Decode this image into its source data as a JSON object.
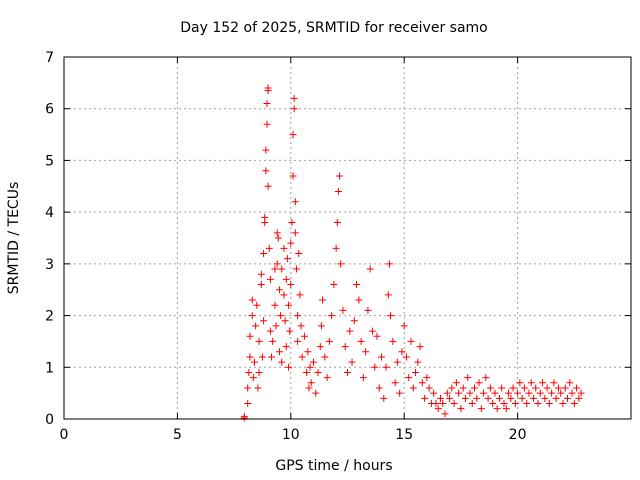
{
  "chart_data": {
    "type": "scatter",
    "title": "Day 152 of 2025, SRMTID for receiver samo",
    "xlabel": "GPS time / hours",
    "ylabel": "SRMTID / TECUs",
    "xlim": [
      0,
      25
    ],
    "ylim": [
      0,
      7
    ],
    "xticks": [
      0,
      5,
      10,
      15,
      20
    ],
    "yticks": [
      0,
      1,
      2,
      3,
      4,
      5,
      6,
      7
    ],
    "xtick_labels": [
      "0",
      "5",
      "10",
      "15",
      "20"
    ],
    "ytick_labels": [
      "0",
      "1",
      "2",
      "3",
      "4",
      "5",
      "6",
      "7"
    ],
    "grid": true,
    "marker": "+",
    "color": "#ff0000",
    "series": [
      {
        "name": "SRMTID",
        "points": [
          [
            7.95,
            0.02
          ],
          [
            7.95,
            0.05
          ],
          [
            8.1,
            0.3
          ],
          [
            8.1,
            0.6
          ],
          [
            8.15,
            0.9
          ],
          [
            8.2,
            1.2
          ],
          [
            8.2,
            1.6
          ],
          [
            8.3,
            2.0
          ],
          [
            8.3,
            2.3
          ],
          [
            8.35,
            0.8
          ],
          [
            8.4,
            1.1
          ],
          [
            8.45,
            1.8
          ],
          [
            8.5,
            2.2
          ],
          [
            8.55,
            0.6
          ],
          [
            8.6,
            0.9
          ],
          [
            8.6,
            1.5
          ],
          [
            8.7,
            2.8
          ],
          [
            8.7,
            2.6
          ],
          [
            8.75,
            1.2
          ],
          [
            8.8,
            1.9
          ],
          [
            8.8,
            3.2
          ],
          [
            8.85,
            3.9
          ],
          [
            8.85,
            3.8
          ],
          [
            8.9,
            4.8
          ],
          [
            8.9,
            5.2
          ],
          [
            8.95,
            5.7
          ],
          [
            8.95,
            6.1
          ],
          [
            9.0,
            6.4
          ],
          [
            9.0,
            6.35
          ],
          [
            9.0,
            4.5
          ],
          [
            9.05,
            3.3
          ],
          [
            9.1,
            2.7
          ],
          [
            9.1,
            1.7
          ],
          [
            9.15,
            1.2
          ],
          [
            9.2,
            1.5
          ],
          [
            9.3,
            2.2
          ],
          [
            9.3,
            2.9
          ],
          [
            9.35,
            1.8
          ],
          [
            9.4,
            3.0
          ],
          [
            9.4,
            3.6
          ],
          [
            9.45,
            3.5
          ],
          [
            9.5,
            2.5
          ],
          [
            9.5,
            1.3
          ],
          [
            9.55,
            2.0
          ],
          [
            9.6,
            2.9
          ],
          [
            9.6,
            1.1
          ],
          [
            9.7,
            3.3
          ],
          [
            9.7,
            2.4
          ],
          [
            9.75,
            1.9
          ],
          [
            9.8,
            2.7
          ],
          [
            9.8,
            1.4
          ],
          [
            9.85,
            3.1
          ],
          [
            9.9,
            2.2
          ],
          [
            9.9,
            1.0
          ],
          [
            9.95,
            1.7
          ],
          [
            10.0,
            2.6
          ],
          [
            10.0,
            3.4
          ],
          [
            10.05,
            3.8
          ],
          [
            10.1,
            4.7
          ],
          [
            10.1,
            5.5
          ],
          [
            10.15,
            6.0
          ],
          [
            10.15,
            6.2
          ],
          [
            10.2,
            4.2
          ],
          [
            10.2,
            3.6
          ],
          [
            10.25,
            2.9
          ],
          [
            10.3,
            2.0
          ],
          [
            10.3,
            1.5
          ],
          [
            10.35,
            3.2
          ],
          [
            10.4,
            2.4
          ],
          [
            10.45,
            1.8
          ],
          [
            10.5,
            1.2
          ],
          [
            10.6,
            1.6
          ],
          [
            10.7,
            0.9
          ],
          [
            10.75,
            1.3
          ],
          [
            10.8,
            0.6
          ],
          [
            10.85,
            1.0
          ],
          [
            10.9,
            0.7
          ],
          [
            11.0,
            1.1
          ],
          [
            11.1,
            0.5
          ],
          [
            11.2,
            0.9
          ],
          [
            11.3,
            1.4
          ],
          [
            11.35,
            1.8
          ],
          [
            11.4,
            2.3
          ],
          [
            11.5,
            1.2
          ],
          [
            11.6,
            0.8
          ],
          [
            11.7,
            1.5
          ],
          [
            11.8,
            2.0
          ],
          [
            11.9,
            2.6
          ],
          [
            12.0,
            3.3
          ],
          [
            12.05,
            3.8
          ],
          [
            12.1,
            4.4
          ],
          [
            12.15,
            4.7
          ],
          [
            12.2,
            3.0
          ],
          [
            12.3,
            2.1
          ],
          [
            12.4,
            1.4
          ],
          [
            12.5,
            0.9
          ],
          [
            12.6,
            1.7
          ],
          [
            12.7,
            1.1
          ],
          [
            12.8,
            1.9
          ],
          [
            12.9,
            2.6
          ],
          [
            13.0,
            2.3
          ],
          [
            13.1,
            1.5
          ],
          [
            13.2,
            0.8
          ],
          [
            13.3,
            1.3
          ],
          [
            13.4,
            2.1
          ],
          [
            13.5,
            2.9
          ],
          [
            13.6,
            1.7
          ],
          [
            13.7,
            1.0
          ],
          [
            13.8,
            1.6
          ],
          [
            13.9,
            0.6
          ],
          [
            14.0,
            1.2
          ],
          [
            14.1,
            0.4
          ],
          [
            14.2,
            1.0
          ],
          [
            14.3,
            2.4
          ],
          [
            14.35,
            3.0
          ],
          [
            14.4,
            2.0
          ],
          [
            14.5,
            1.5
          ],
          [
            14.6,
            0.7
          ],
          [
            14.7,
            1.1
          ],
          [
            14.8,
            0.5
          ],
          [
            14.9,
            1.3
          ],
          [
            15.0,
            1.8
          ],
          [
            15.1,
            1.2
          ],
          [
            15.2,
            0.8
          ],
          [
            15.3,
            1.5
          ],
          [
            15.4,
            0.6
          ],
          [
            15.5,
            0.9
          ],
          [
            15.6,
            1.1
          ],
          [
            15.7,
            1.4
          ],
          [
            15.8,
            0.7
          ],
          [
            15.9,
            0.4
          ],
          [
            16.0,
            0.8
          ],
          [
            16.1,
            0.6
          ],
          [
            16.2,
            0.3
          ],
          [
            16.3,
            0.5
          ],
          [
            16.4,
            0.3
          ],
          [
            16.5,
            0.2
          ],
          [
            16.6,
            0.4
          ],
          [
            16.7,
            0.3
          ],
          [
            16.8,
            0.1
          ],
          [
            16.9,
            0.5
          ],
          [
            17.0,
            0.4
          ],
          [
            17.1,
            0.6
          ],
          [
            17.2,
            0.3
          ],
          [
            17.3,
            0.7
          ],
          [
            17.4,
            0.5
          ],
          [
            17.5,
            0.2
          ],
          [
            17.6,
            0.6
          ],
          [
            17.7,
            0.4
          ],
          [
            17.8,
            0.8
          ],
          [
            17.9,
            0.5
          ],
          [
            18.0,
            0.3
          ],
          [
            18.1,
            0.6
          ],
          [
            18.2,
            0.4
          ],
          [
            18.3,
            0.7
          ],
          [
            18.4,
            0.2
          ],
          [
            18.5,
            0.5
          ],
          [
            18.6,
            0.8
          ],
          [
            18.7,
            0.4
          ],
          [
            18.8,
            0.6
          ],
          [
            18.9,
            0.3
          ],
          [
            19.0,
            0.5
          ],
          [
            19.1,
            0.2
          ],
          [
            19.2,
            0.4
          ],
          [
            19.3,
            0.6
          ],
          [
            19.4,
            0.3
          ],
          [
            19.5,
            0.2
          ],
          [
            19.6,
            0.5
          ],
          [
            19.7,
            0.4
          ],
          [
            19.8,
            0.6
          ],
          [
            19.9,
            0.3
          ],
          [
            20.0,
            0.5
          ],
          [
            20.1,
            0.7
          ],
          [
            20.2,
            0.4
          ],
          [
            20.3,
            0.6
          ],
          [
            20.4,
            0.3
          ],
          [
            20.5,
            0.5
          ],
          [
            20.6,
            0.7
          ],
          [
            20.7,
            0.4
          ],
          [
            20.8,
            0.6
          ],
          [
            20.9,
            0.3
          ],
          [
            21.0,
            0.5
          ],
          [
            21.1,
            0.7
          ],
          [
            21.2,
            0.4
          ],
          [
            21.3,
            0.6
          ],
          [
            21.4,
            0.3
          ],
          [
            21.5,
            0.5
          ],
          [
            21.6,
            0.7
          ],
          [
            21.7,
            0.4
          ],
          [
            21.8,
            0.6
          ],
          [
            21.9,
            0.5
          ],
          [
            22.0,
            0.3
          ],
          [
            22.1,
            0.6
          ],
          [
            22.2,
            0.4
          ],
          [
            22.3,
            0.7
          ],
          [
            22.4,
            0.5
          ],
          [
            22.5,
            0.3
          ],
          [
            22.6,
            0.6
          ],
          [
            22.7,
            0.4
          ],
          [
            22.8,
            0.5
          ]
        ]
      }
    ]
  }
}
